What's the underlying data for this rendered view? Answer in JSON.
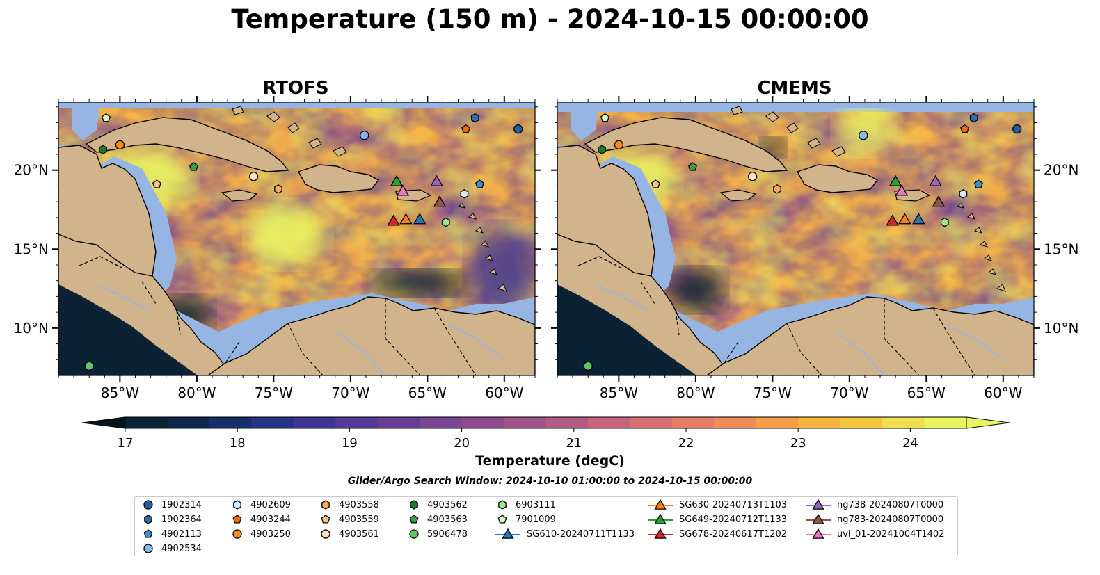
{
  "title": "Temperature (150 m) - 2024-10-15 00:00:00",
  "panels": [
    {
      "id": "rtofs",
      "title": "RTOFS"
    },
    {
      "id": "cmems",
      "title": "CMEMS"
    }
  ],
  "lon_ticks": [
    "85°W",
    "80°W",
    "75°W",
    "70°W",
    "65°W",
    "60°W"
  ],
  "lat_ticks": [
    "20°N",
    "15°N",
    "10°N"
  ],
  "map_extent": {
    "lon": [
      -89,
      -58
    ],
    "lat": [
      7,
      24.3
    ]
  },
  "colorbar": {
    "label": "Temperature (degC)",
    "ticks": [
      "17",
      "18",
      "19",
      "20",
      "21",
      "22",
      "23",
      "24"
    ],
    "range": [
      17,
      24.5
    ],
    "colors": [
      "#0b2235",
      "#0d2a4e",
      "#142f6b",
      "#273385",
      "#3f3693",
      "#553a97",
      "#673e95",
      "#7a4592",
      "#8d4b8e",
      "#a05289",
      "#b35c83",
      "#c6657b",
      "#d77072",
      "#e57e66",
      "#ef8d58",
      "#f69e4a",
      "#f8b23e",
      "#f4c63a",
      "#eedd4f",
      "#eaf460"
    ]
  },
  "search_window": "Glider/Argo Search Window: 2024-10-10 01:00:00 to 2024-10-15 00:00:00",
  "land_color": "#d2b48c",
  "shelf_color": "#97b5e2",
  "legend": [
    {
      "label": "1902314",
      "shape": "circle",
      "color": "#1f5f9a"
    },
    {
      "label": "1902364",
      "shape": "hexagon",
      "color": "#2b6fb0"
    },
    {
      "label": "4902113",
      "shape": "pentagon",
      "color": "#3f8fd0"
    },
    {
      "label": "4902534",
      "shape": "circle",
      "color": "#86b9e6"
    },
    {
      "label": "4902609",
      "shape": "hexagon",
      "color": "#d6ebfa"
    },
    {
      "label": "4903244",
      "shape": "pentagon",
      "color": "#ee6d00"
    },
    {
      "label": "4903250",
      "shape": "circle",
      "color": "#f58a1f"
    },
    {
      "label": "4903558",
      "shape": "hexagon",
      "color": "#f9a861"
    },
    {
      "label": "4903559",
      "shape": "pentagon",
      "color": "#fbc28e"
    },
    {
      "label": "4903561",
      "shape": "circle",
      "color": "#fde0c5"
    },
    {
      "label": "4903562",
      "shape": "hexagon",
      "color": "#1c7a2a"
    },
    {
      "label": "4903563",
      "shape": "pentagon",
      "color": "#3d9c3f"
    },
    {
      "label": "5906478",
      "shape": "circle",
      "color": "#62c562"
    },
    {
      "label": "6903111",
      "shape": "hexagon",
      "color": "#9ee58f"
    },
    {
      "label": "7901009",
      "shape": "pentagon",
      "color": "#d4f7c8"
    },
    {
      "label": "SG610-20240711T1133",
      "shape": "triangle",
      "color": "#1f77b4"
    },
    {
      "label": "SG630-20240713T1103",
      "shape": "triangle",
      "color": "#ff7f0e"
    },
    {
      "label": "SG649-20240712T1133",
      "shape": "triangle",
      "color": "#2ca02c"
    },
    {
      "label": "SG678-20240617T1202",
      "shape": "triangle",
      "color": "#d62728"
    },
    {
      "label": "ng738-20240807T0000",
      "shape": "triangle",
      "color": "#9467bd"
    },
    {
      "label": "ng783-20240807T0000",
      "shape": "triangle",
      "color": "#8c564b"
    },
    {
      "label": "uvi_01-20241004T1402",
      "shape": "triangle",
      "color": "#e377c2"
    }
  ],
  "floats": [
    {
      "id": "1902314",
      "lon": -59.1,
      "lat": 22.6
    },
    {
      "id": "1902364",
      "lon": -61.9,
      "lat": 23.3
    },
    {
      "id": "4902113",
      "lon": -61.6,
      "lat": 19.1
    },
    {
      "id": "4902534",
      "lon": -69.1,
      "lat": 22.2
    },
    {
      "id": "4902609",
      "lon": -62.6,
      "lat": 18.5
    },
    {
      "id": "4903244",
      "lon": -62.5,
      "lat": 22.6
    },
    {
      "id": "4903250",
      "lon": -85.0,
      "lat": 21.6
    },
    {
      "id": "4903558",
      "lon": -74.7,
      "lat": 18.8
    },
    {
      "id": "4903559",
      "lon": -82.6,
      "lat": 19.1
    },
    {
      "id": "4903561",
      "lon": -76.3,
      "lat": 19.6
    },
    {
      "id": "4903562",
      "lon": -86.1,
      "lat": 21.3
    },
    {
      "id": "4903563",
      "lon": -80.2,
      "lat": 20.2
    },
    {
      "id": "5906478",
      "lon": -87.0,
      "lat": 7.6
    },
    {
      "id": "6903111",
      "lon": -63.8,
      "lat": 16.7
    },
    {
      "id": "7901009",
      "lon": -85.9,
      "lat": 23.3
    }
  ],
  "gliders": [
    {
      "id": "SG610-20240711T1133",
      "lon": -65.5,
      "lat": 16.9
    },
    {
      "id": "SG630-20240713T1103",
      "lon": -66.4,
      "lat": 16.9
    },
    {
      "id": "SG649-20240712T1133",
      "lon": -67.0,
      "lat": 19.3
    },
    {
      "id": "SG678-20240617T1202",
      "lon": -67.2,
      "lat": 16.8
    },
    {
      "id": "ng738-20240807T0000",
      "lon": -64.4,
      "lat": 19.3
    },
    {
      "id": "ng783-20240807T0000",
      "lon": -64.2,
      "lat": 18.0
    },
    {
      "id": "uvi_01-20241004T1402",
      "lon": -66.6,
      "lat": 18.7
    }
  ]
}
